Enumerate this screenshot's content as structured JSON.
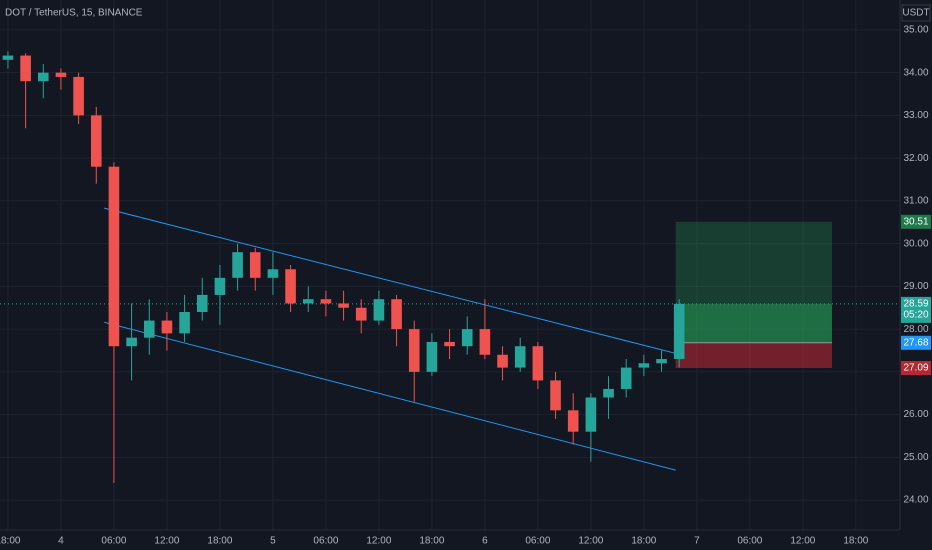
{
  "chart_data": {
    "type": "candlestick",
    "title": "DOT / TetherUS, 15, BINANCE",
    "currency": "USDT",
    "countdown": "05:20",
    "up_color": "#26a69a",
    "down_color": "#ef5350",
    "channel_color": "#2196f3",
    "grid": true,
    "x": [
      0,
      2,
      4,
      6,
      8,
      10,
      12,
      14,
      16,
      18,
      20,
      22,
      24,
      26,
      28,
      30,
      32,
      34,
      36,
      38,
      40,
      42,
      44,
      46,
      48,
      50,
      52,
      54,
      56,
      58,
      60,
      62,
      64,
      66,
      68,
      70,
      72,
      74,
      76
    ],
    "open": [
      34.3,
      34.4,
      33.8,
      34.0,
      33.9,
      33.0,
      31.8,
      27.6,
      27.8,
      28.2,
      27.9,
      28.4,
      28.8,
      29.2,
      29.8,
      29.2,
      29.4,
      28.6,
      28.7,
      28.6,
      28.5,
      28.2,
      28.7,
      28.0,
      27.0,
      27.7,
      27.6,
      28.0,
      27.4,
      27.1,
      27.6,
      26.8,
      26.1,
      25.6,
      26.4,
      26.6,
      27.1,
      27.2,
      27.3
    ],
    "high": [
      34.5,
      34.45,
      34.2,
      34.1,
      34.0,
      33.2,
      31.9,
      28.6,
      28.7,
      28.4,
      28.8,
      29.2,
      29.5,
      30.0,
      29.9,
      29.8,
      29.5,
      29.0,
      28.9,
      28.9,
      28.7,
      28.9,
      28.8,
      28.2,
      27.9,
      28.0,
      28.3,
      28.7,
      27.6,
      27.8,
      27.7,
      27.0,
      26.5,
      26.5,
      26.9,
      27.3,
      27.4,
      27.5,
      28.7
    ],
    "low": [
      34.1,
      32.7,
      33.4,
      33.6,
      32.8,
      31.4,
      24.4,
      26.8,
      27.4,
      27.5,
      27.7,
      28.2,
      28.1,
      28.9,
      28.9,
      28.8,
      28.4,
      28.4,
      28.3,
      28.2,
      27.9,
      28.1,
      27.6,
      26.3,
      26.9,
      27.3,
      27.4,
      27.3,
      26.8,
      27.0,
      26.6,
      25.9,
      25.3,
      24.9,
      25.9,
      26.4,
      26.9,
      27.0,
      27.1
    ],
    "close": [
      34.4,
      33.8,
      34.0,
      33.9,
      33.0,
      31.8,
      27.6,
      27.8,
      28.2,
      27.9,
      28.4,
      28.8,
      29.2,
      29.8,
      29.2,
      29.4,
      28.6,
      28.7,
      28.6,
      28.5,
      28.2,
      28.7,
      28.0,
      27.0,
      27.7,
      27.6,
      28.0,
      27.4,
      27.1,
      27.6,
      26.8,
      26.1,
      25.6,
      26.4,
      26.6,
      27.1,
      27.2,
      27.3,
      28.59
    ],
    "channel": [
      {
        "x": [
          10.9,
          76.4
        ],
        "y": [
          30.83,
          27.39
        ]
      },
      {
        "x": [
          10.9,
          75.6
        ],
        "y": [
          28.16,
          24.7
        ]
      }
    ],
    "position_x": [
      75.6,
      93.3
    ],
    "price_labels": {
      "target": 30.51,
      "current": 28.59,
      "entry": 27.68,
      "stop": 27.09
    },
    "xlim": [
      -0.9,
      101
    ],
    "ylim": [
      23.3,
      35.7
    ],
    "xticks": [
      {
        "value": 0,
        "label": "18:00"
      },
      {
        "value": 6,
        "label": "4"
      },
      {
        "value": 12,
        "label": "06:00"
      },
      {
        "value": 18,
        "label": "12:00"
      },
      {
        "value": 24,
        "label": "18:00"
      },
      {
        "value": 30,
        "label": "5"
      },
      {
        "value": 36,
        "label": "06:00"
      },
      {
        "value": 42,
        "label": "12:00"
      },
      {
        "value": 48,
        "label": "18:00"
      },
      {
        "value": 54,
        "label": "6"
      },
      {
        "value": 60,
        "label": "06:00"
      },
      {
        "value": 66,
        "label": "12:00"
      },
      {
        "value": 72,
        "label": "18:00"
      },
      {
        "value": 78,
        "label": "7"
      },
      {
        "value": 84,
        "label": "06:00"
      },
      {
        "value": 90,
        "label": "12:00"
      },
      {
        "value": 96,
        "label": "18:00"
      }
    ],
    "yticks": [
      {
        "value": 24,
        "label": "24.00"
      },
      {
        "value": 25,
        "label": "25.00"
      },
      {
        "value": 26,
        "label": "26.00"
      },
      {
        "value": 27,
        "label": "27.00"
      },
      {
        "value": 28,
        "label": "28.00"
      },
      {
        "value": 29,
        "label": "29.00"
      },
      {
        "value": 30,
        "label": "30.00"
      },
      {
        "value": 31,
        "label": "31.00"
      },
      {
        "value": 32,
        "label": "32.00"
      },
      {
        "value": 33,
        "label": "33.00"
      },
      {
        "value": 34,
        "label": "34.00"
      },
      {
        "value": 35,
        "label": "35.00"
      }
    ]
  }
}
